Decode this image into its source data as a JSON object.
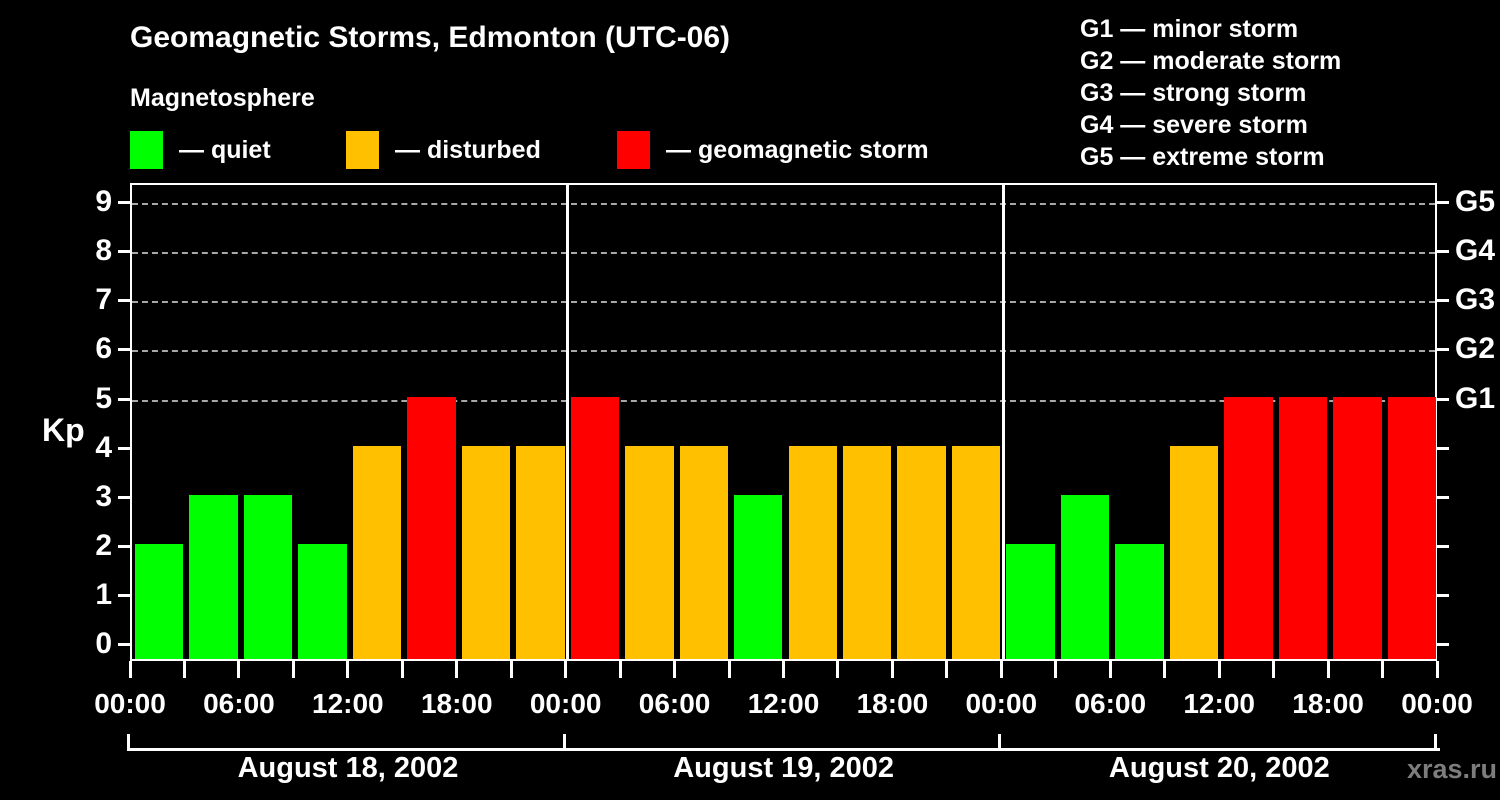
{
  "header": {
    "title": "Geomagnetic Storms, Edmonton (UTC-06)",
    "subtitle": "Magnetosphere",
    "watermark": "xras.ru"
  },
  "legend": {
    "items": [
      {
        "key": "quiet",
        "label": "— quiet",
        "color": "#00ff00"
      },
      {
        "key": "disturbed",
        "label": "— disturbed",
        "color": "#ffc000"
      },
      {
        "key": "storm",
        "label": "— geomagnetic storm",
        "color": "#ff0000"
      }
    ]
  },
  "g_scale_legend": {
    "items": [
      "G1 — minor storm",
      "G2 — moderate storm",
      "G3 — strong storm",
      "G4 — severe storm",
      "G5 — extreme storm"
    ]
  },
  "chart_data": {
    "type": "bar",
    "title": "Geomagnetic Storms, Edmonton (UTC-06)",
    "ylabel": "Kp",
    "ylim": [
      0,
      9
    ],
    "y_ticks": [
      0,
      1,
      2,
      3,
      4,
      5,
      6,
      7,
      8,
      9
    ],
    "gridlines_at": [
      5,
      6,
      7,
      8,
      9
    ],
    "grid_style": "dashed",
    "legend_position": "top",
    "right_axis": [
      {
        "kp": 5,
        "label": "G1"
      },
      {
        "kp": 6,
        "label": "G2"
      },
      {
        "kp": 7,
        "label": "G3"
      },
      {
        "kp": 8,
        "label": "G4"
      },
      {
        "kp": 9,
        "label": "G5"
      }
    ],
    "x_tick_labels": [
      "00:00",
      "06:00",
      "12:00",
      "18:00",
      "00:00",
      "06:00",
      "12:00",
      "18:00",
      "00:00",
      "06:00",
      "12:00",
      "18:00",
      "00:00"
    ],
    "hours_per_bar": 3,
    "days": [
      {
        "date": "August 18, 2002",
        "kp": [
          2,
          3,
          3,
          2,
          4,
          5,
          4,
          4
        ]
      },
      {
        "date": "August 19, 2002",
        "kp": [
          5,
          4,
          4,
          3,
          4,
          4,
          4,
          4
        ]
      },
      {
        "date": "August 20, 2002",
        "kp": [
          2,
          3,
          2,
          4,
          5,
          5,
          5,
          5
        ]
      }
    ],
    "state_rules": {
      "quiet": "kp <= 3",
      "disturbed": "kp == 4",
      "storm": "kp >= 5"
    },
    "colors": {
      "quiet": "#00ff00",
      "disturbed": "#ffc000",
      "storm": "#ff0000",
      "background": "#000000",
      "axis": "#ffffff",
      "grid": "#a8a8a8"
    }
  }
}
